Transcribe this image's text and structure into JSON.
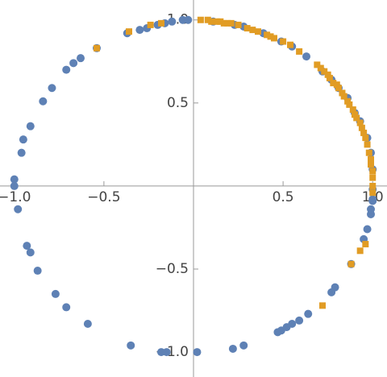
{
  "chart_data": {
    "type": "scatter",
    "xlim": [
      -1.08,
      1.08
    ],
    "ylim": [
      -1.15,
      1.12
    ],
    "xticks": [
      {
        "value": -1,
        "label": "−1.0"
      },
      {
        "value": -0.5,
        "label": "−0.5"
      },
      0.5,
      {
        "value": 1,
        "label": "1.0"
      }
    ],
    "yticks": [
      {
        "value": -1,
        "label": "−1.0"
      },
      {
        "value": -0.5,
        "label": "−0.5"
      },
      0.5,
      {
        "value": 1,
        "label": "1.0"
      }
    ],
    "series": [
      {
        "color": "#5e81b5",
        "marker": "circle",
        "x": [
          -0.37,
          -0.3,
          -0.26,
          -0.2,
          -0.16,
          -0.12,
          -0.06,
          -0.03,
          -0.54,
          -0.63,
          -0.67,
          -0.71,
          -0.79,
          -0.84,
          -0.91,
          -0.95,
          -0.96,
          -1.0,
          -1.0,
          -0.98,
          -0.93,
          -0.91,
          -0.87,
          -0.77,
          -0.71,
          -0.59,
          -0.35,
          -0.18,
          -0.15,
          0.02,
          0.22,
          0.28,
          0.47,
          0.49,
          0.52,
          0.55,
          0.59,
          0.64,
          0.77,
          0.79,
          0.88,
          0.95,
          0.97,
          0.99,
          1.0,
          0.99,
          1.0,
          0.11,
          0.23,
          0.28,
          0.39,
          0.49,
          0.55,
          0.63,
          0.72,
          0.77,
          0.81,
          0.86,
          0.9,
          0.93,
          0.97,
          0.99,
          1.0,
          1.0
        ],
        "values": [
          0.92,
          0.94,
          0.95,
          0.97,
          0.98,
          0.99,
          1.0,
          1.0,
          0.83,
          0.77,
          0.74,
          0.7,
          0.59,
          0.51,
          0.36,
          0.28,
          0.2,
          0.04,
          0.0,
          -0.14,
          -0.36,
          -0.4,
          -0.51,
          -0.65,
          -0.73,
          -0.83,
          -0.96,
          -1.0,
          -1.0,
          -1.0,
          -0.98,
          -0.96,
          -0.88,
          -0.87,
          -0.85,
          -0.83,
          -0.81,
          -0.77,
          -0.64,
          -0.61,
          -0.47,
          -0.32,
          -0.26,
          -0.17,
          -0.08,
          -0.14,
          -0.09,
          0.99,
          0.97,
          0.96,
          0.92,
          0.87,
          0.84,
          0.78,
          0.69,
          0.64,
          0.59,
          0.53,
          0.44,
          0.39,
          0.29,
          0.2,
          0.1,
          -0.02
        ]
      },
      {
        "color": "#e19c24",
        "marker": "square",
        "x": [
          0.04,
          0.08,
          0.1,
          0.13,
          0.15,
          0.17,
          0.19,
          0.21,
          0.25,
          0.3,
          0.33,
          0.36,
          0.41,
          0.43,
          0.45,
          0.5,
          0.54,
          0.59,
          0.69,
          0.71,
          0.73,
          0.75,
          0.76,
          0.78,
          0.8,
          0.81,
          0.83,
          0.84,
          0.86,
          0.87,
          0.89,
          0.9,
          0.91,
          0.93,
          0.94,
          0.95,
          0.96,
          0.97,
          0.98,
          0.99,
          0.99,
          1.0,
          1.0,
          1.0,
          1.0,
          -0.36,
          -0.54,
          -0.24,
          -0.18,
          0.93,
          0.88,
          0.72,
          0.96
        ],
        "values": [
          1.0,
          1.0,
          0.99,
          0.99,
          0.99,
          0.98,
          0.98,
          0.98,
          0.97,
          0.95,
          0.94,
          0.93,
          0.91,
          0.9,
          0.89,
          0.87,
          0.85,
          0.81,
          0.73,
          0.71,
          0.69,
          0.67,
          0.65,
          0.62,
          0.61,
          0.59,
          0.56,
          0.54,
          0.51,
          0.49,
          0.46,
          0.43,
          0.41,
          0.38,
          0.35,
          0.32,
          0.29,
          0.25,
          0.2,
          0.16,
          0.13,
          0.09,
          0.05,
          0.0,
          -0.04,
          0.93,
          0.83,
          0.97,
          0.98,
          -0.39,
          -0.47,
          -0.72,
          -0.35
        ]
      }
    ]
  }
}
